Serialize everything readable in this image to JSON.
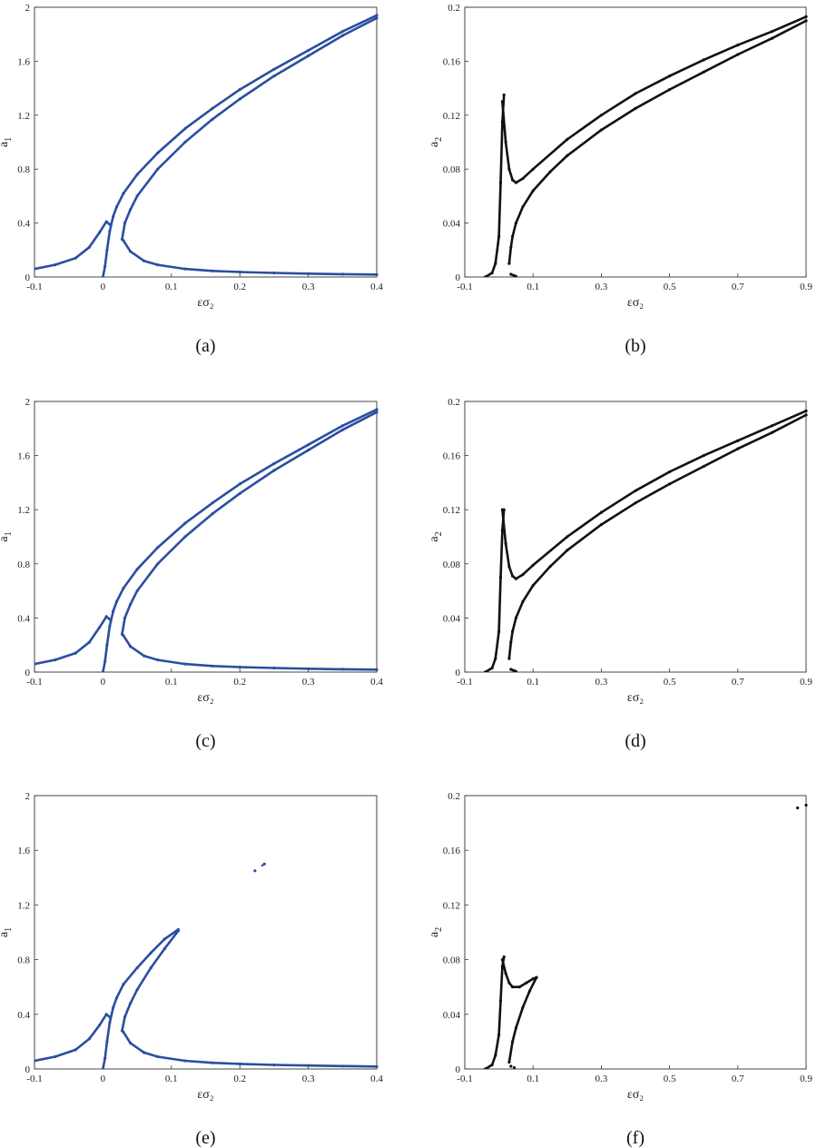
{
  "chart_data": [
    {
      "id": "a",
      "panel_label": "(a)",
      "type": "scatter",
      "xlabel": "εσ₂",
      "ylabel_main": "a",
      "ylabel_sub": "1",
      "xlim": [
        -0.1,
        0.4
      ],
      "ylim": [
        0,
        2
      ],
      "xticks": [
        "-0.1",
        "0",
        "0.1",
        "0.2",
        "0.3",
        "0.4"
      ],
      "yticks": [
        "0",
        "0.4",
        "0.8",
        "1.2",
        "1.6",
        "2"
      ],
      "color": "#2a4ea0",
      "grid": false,
      "series": [
        {
          "x": [
            -0.1,
            -0.07,
            -0.04,
            -0.02,
            -0.005,
            0.005,
            0.01
          ],
          "y": [
            0.06,
            0.09,
            0.14,
            0.22,
            0.33,
            0.41,
            0.39
          ]
        },
        {
          "x": [
            0.0,
            0.003,
            0.006,
            0.01,
            0.015,
            0.02,
            0.03,
            0.05,
            0.08,
            0.12,
            0.16,
            0.2,
            0.25,
            0.3,
            0.35,
            0.4
          ],
          "y": [
            0.0,
            0.08,
            0.2,
            0.34,
            0.45,
            0.52,
            0.62,
            0.76,
            0.92,
            1.1,
            1.25,
            1.39,
            1.54,
            1.68,
            1.82,
            1.94
          ]
        },
        {
          "x": [
            0.028,
            0.032,
            0.04,
            0.05,
            0.08,
            0.12,
            0.16,
            0.2,
            0.25,
            0.3,
            0.35,
            0.4
          ],
          "y": [
            0.28,
            0.4,
            0.5,
            0.6,
            0.8,
            1.0,
            1.17,
            1.32,
            1.49,
            1.64,
            1.79,
            1.92
          ]
        },
        {
          "x": [
            0.03,
            0.04,
            0.06,
            0.08,
            0.12,
            0.16,
            0.2,
            0.25,
            0.3,
            0.35,
            0.4
          ],
          "y": [
            0.27,
            0.19,
            0.12,
            0.09,
            0.06,
            0.045,
            0.037,
            0.03,
            0.025,
            0.021,
            0.018
          ]
        }
      ]
    },
    {
      "id": "b",
      "panel_label": "(b)",
      "type": "scatter",
      "xlabel": "εσ₂",
      "ylabel_main": "a",
      "ylabel_sub": "2",
      "xlim": [
        -0.1,
        0.9
      ],
      "ylim": [
        0,
        0.2
      ],
      "xticks": [
        "-0.1",
        "0.1",
        "0.3",
        "0.5",
        "0.7",
        "0.9"
      ],
      "yticks": [
        "0",
        "0.04",
        "0.08",
        "0.12",
        "0.16",
        "0.2"
      ],
      "color": "#111111",
      "grid": false,
      "series": [
        {
          "x": [
            -0.04,
            -0.02,
            -0.01,
            0.0,
            0.005,
            0.01,
            0.015
          ],
          "y": [
            0.0,
            0.003,
            0.01,
            0.03,
            0.07,
            0.115,
            0.135
          ]
        },
        {
          "x": [
            0.01,
            0.02,
            0.03,
            0.04,
            0.05,
            0.07,
            0.1,
            0.2,
            0.3,
            0.4,
            0.5,
            0.6,
            0.7,
            0.8,
            0.9
          ],
          "y": [
            0.13,
            0.1,
            0.08,
            0.072,
            0.07,
            0.073,
            0.08,
            0.102,
            0.12,
            0.136,
            0.149,
            0.161,
            0.172,
            0.182,
            0.193
          ]
        },
        {
          "x": [
            0.03,
            0.035,
            0.04,
            0.05,
            0.07,
            0.1,
            0.15,
            0.2,
            0.3,
            0.4,
            0.5,
            0.6,
            0.7,
            0.8,
            0.9
          ],
          "y": [
            0.01,
            0.022,
            0.03,
            0.04,
            0.052,
            0.064,
            0.078,
            0.09,
            0.109,
            0.125,
            0.139,
            0.152,
            0.165,
            0.177,
            0.19
          ]
        },
        {
          "x": [
            0.035,
            0.045,
            0.05
          ],
          "y": [
            0.002,
            0.001,
            0.0005
          ]
        }
      ]
    },
    {
      "id": "c",
      "panel_label": "(c)",
      "type": "scatter",
      "xlabel": "εσ₂",
      "ylabel_main": "a",
      "ylabel_sub": "1",
      "xlim": [
        -0.1,
        0.4
      ],
      "ylim": [
        0,
        2
      ],
      "xticks": [
        "-0.1",
        "0",
        "0.1",
        "0.2",
        "0.3",
        "0.4"
      ],
      "yticks": [
        "0",
        "0.4",
        "0.8",
        "1.2",
        "1.6",
        "2"
      ],
      "color": "#2a4ea0",
      "grid": false,
      "series": [
        {
          "x": [
            -0.1,
            -0.07,
            -0.04,
            -0.02,
            -0.005,
            0.005,
            0.01
          ],
          "y": [
            0.06,
            0.09,
            0.14,
            0.22,
            0.33,
            0.41,
            0.39
          ]
        },
        {
          "x": [
            0.0,
            0.003,
            0.006,
            0.01,
            0.015,
            0.02,
            0.03,
            0.05,
            0.08,
            0.12,
            0.16,
            0.2,
            0.25,
            0.3,
            0.35,
            0.4
          ],
          "y": [
            0.0,
            0.08,
            0.2,
            0.34,
            0.45,
            0.52,
            0.62,
            0.76,
            0.92,
            1.1,
            1.25,
            1.39,
            1.54,
            1.68,
            1.82,
            1.94
          ]
        },
        {
          "x": [
            0.028,
            0.032,
            0.04,
            0.05,
            0.08,
            0.12,
            0.16,
            0.2,
            0.25,
            0.3,
            0.35,
            0.4
          ],
          "y": [
            0.28,
            0.4,
            0.5,
            0.6,
            0.8,
            1.0,
            1.17,
            1.32,
            1.49,
            1.64,
            1.79,
            1.92
          ]
        },
        {
          "x": [
            0.03,
            0.04,
            0.06,
            0.08,
            0.12,
            0.16,
            0.2,
            0.25,
            0.3,
            0.35,
            0.4
          ],
          "y": [
            0.27,
            0.19,
            0.12,
            0.09,
            0.06,
            0.045,
            0.037,
            0.03,
            0.025,
            0.021,
            0.018
          ]
        }
      ]
    },
    {
      "id": "d",
      "panel_label": "(d)",
      "type": "scatter",
      "xlabel": "εσ₂",
      "ylabel_main": "a",
      "ylabel_sub": "2",
      "xlim": [
        -0.1,
        0.9
      ],
      "ylim": [
        0,
        0.2
      ],
      "xticks": [
        "-0.1",
        "0.1",
        "0.3",
        "0.5",
        "0.7",
        "0.9"
      ],
      "yticks": [
        "0",
        "0.04",
        "0.08",
        "0.12",
        "0.16",
        "0.2"
      ],
      "color": "#111111",
      "grid": false,
      "series": [
        {
          "x": [
            -0.04,
            -0.02,
            -0.01,
            0.0,
            0.005,
            0.01,
            0.015
          ],
          "y": [
            0.0,
            0.003,
            0.01,
            0.03,
            0.07,
            0.105,
            0.12
          ]
        },
        {
          "x": [
            0.01,
            0.02,
            0.03,
            0.04,
            0.05,
            0.07,
            0.1,
            0.2,
            0.3,
            0.4,
            0.5,
            0.6,
            0.7,
            0.8,
            0.9
          ],
          "y": [
            0.12,
            0.095,
            0.078,
            0.071,
            0.069,
            0.072,
            0.079,
            0.1,
            0.118,
            0.134,
            0.148,
            0.16,
            0.171,
            0.182,
            0.193
          ]
        },
        {
          "x": [
            0.03,
            0.035,
            0.04,
            0.05,
            0.07,
            0.1,
            0.15,
            0.2,
            0.3,
            0.4,
            0.5,
            0.6,
            0.7,
            0.8,
            0.9
          ],
          "y": [
            0.01,
            0.022,
            0.03,
            0.04,
            0.052,
            0.064,
            0.078,
            0.09,
            0.109,
            0.125,
            0.139,
            0.152,
            0.165,
            0.177,
            0.19
          ]
        },
        {
          "x": [
            0.035,
            0.045,
            0.05
          ],
          "y": [
            0.002,
            0.001,
            0.0005
          ]
        }
      ]
    },
    {
      "id": "e",
      "panel_label": "(e)",
      "type": "scatter",
      "xlabel": "εσ₂",
      "ylabel_main": "a",
      "ylabel_sub": "1",
      "xlim": [
        -0.1,
        0.4
      ],
      "ylim": [
        0,
        2
      ],
      "xticks": [
        "-0.1",
        "0",
        "0.1",
        "0.2",
        "0.3",
        "0.4"
      ],
      "yticks": [
        "0",
        "0.4",
        "0.8",
        "1.2",
        "1.6",
        "2"
      ],
      "color": "#2a4ea0",
      "grid": false,
      "series": [
        {
          "x": [
            -0.1,
            -0.07,
            -0.04,
            -0.02,
            -0.005,
            0.005,
            0.01
          ],
          "y": [
            0.06,
            0.09,
            0.14,
            0.22,
            0.32,
            0.4,
            0.38
          ]
        },
        {
          "x": [
            0.0,
            0.003,
            0.006,
            0.01,
            0.015,
            0.02,
            0.03,
            0.05,
            0.07,
            0.09,
            0.11
          ],
          "y": [
            0.0,
            0.08,
            0.2,
            0.34,
            0.45,
            0.52,
            0.62,
            0.74,
            0.85,
            0.95,
            1.02
          ]
        },
        {
          "x": [
            0.028,
            0.032,
            0.04,
            0.05,
            0.07,
            0.09,
            0.11
          ],
          "y": [
            0.28,
            0.38,
            0.48,
            0.58,
            0.74,
            0.88,
            1.01
          ]
        },
        {
          "x": [
            0.03,
            0.04,
            0.06,
            0.08,
            0.12,
            0.16,
            0.2,
            0.25,
            0.3,
            0.35,
            0.4
          ],
          "y": [
            0.27,
            0.19,
            0.12,
            0.09,
            0.06,
            0.045,
            0.037,
            0.03,
            0.025,
            0.021,
            0.018
          ]
        },
        {
          "x": [
            0.222,
            0.236
          ],
          "y": [
            1.45,
            1.5
          ]
        }
      ]
    },
    {
      "id": "f",
      "panel_label": "(f)",
      "type": "scatter",
      "xlabel": "εσ₂",
      "ylabel_main": "a",
      "ylabel_sub": "2",
      "xlim": [
        -0.1,
        0.9
      ],
      "ylim": [
        0,
        0.2
      ],
      "xticks": [
        "-0.1",
        "0.1",
        "0.3",
        "0.5",
        "0.7",
        "0.9"
      ],
      "yticks": [
        "0",
        "0.04",
        "0.08",
        "0.12",
        "0.16",
        "0.2"
      ],
      "color": "#111111",
      "grid": false,
      "series": [
        {
          "x": [
            -0.04,
            -0.02,
            -0.01,
            0.0,
            0.005,
            0.01,
            0.015
          ],
          "y": [
            0.0,
            0.003,
            0.01,
            0.025,
            0.05,
            0.075,
            0.082
          ]
        },
        {
          "x": [
            0.01,
            0.02,
            0.03,
            0.04,
            0.06,
            0.08,
            0.1,
            0.11
          ],
          "y": [
            0.08,
            0.07,
            0.063,
            0.06,
            0.06,
            0.063,
            0.066,
            0.067
          ]
        },
        {
          "x": [
            0.03,
            0.04,
            0.05,
            0.07,
            0.09,
            0.11
          ],
          "y": [
            0.005,
            0.02,
            0.03,
            0.045,
            0.057,
            0.067
          ]
        },
        {
          "x": [
            0.035,
            0.045
          ],
          "y": [
            0.002,
            0.001
          ]
        },
        {
          "x": [
            0.875,
            0.9
          ],
          "y": [
            0.191,
            0.193
          ]
        }
      ]
    }
  ]
}
